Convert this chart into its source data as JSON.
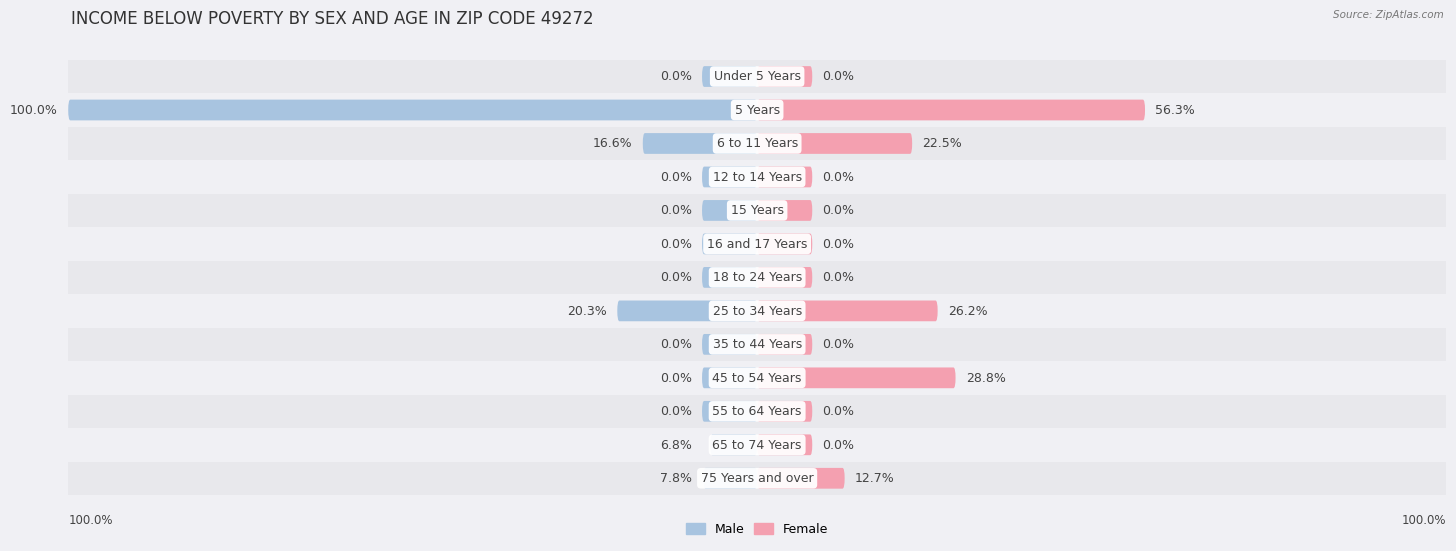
{
  "title": "INCOME BELOW POVERTY BY SEX AND AGE IN ZIP CODE 49272",
  "source": "Source: ZipAtlas.com",
  "categories": [
    "Under 5 Years",
    "5 Years",
    "6 to 11 Years",
    "12 to 14 Years",
    "15 Years",
    "16 and 17 Years",
    "18 to 24 Years",
    "25 to 34 Years",
    "35 to 44 Years",
    "45 to 54 Years",
    "55 to 64 Years",
    "65 to 74 Years",
    "75 Years and over"
  ],
  "male_values": [
    0.0,
    100.0,
    16.6,
    0.0,
    0.0,
    0.0,
    0.0,
    20.3,
    0.0,
    0.0,
    0.0,
    6.8,
    7.8
  ],
  "female_values": [
    0.0,
    56.3,
    22.5,
    0.0,
    0.0,
    0.0,
    0.0,
    26.2,
    0.0,
    28.8,
    0.0,
    0.0,
    12.7
  ],
  "male_color": "#a8c4e0",
  "female_color": "#f4a0b0",
  "male_label": "Male",
  "female_label": "Female",
  "row_bg_dark": "#e8e8ec",
  "row_bg_light": "#f0f0f4",
  "max_value": 100.0,
  "min_bar": 8.0,
  "title_fontsize": 12,
  "label_fontsize": 9,
  "axis_label_fontsize": 8.5
}
